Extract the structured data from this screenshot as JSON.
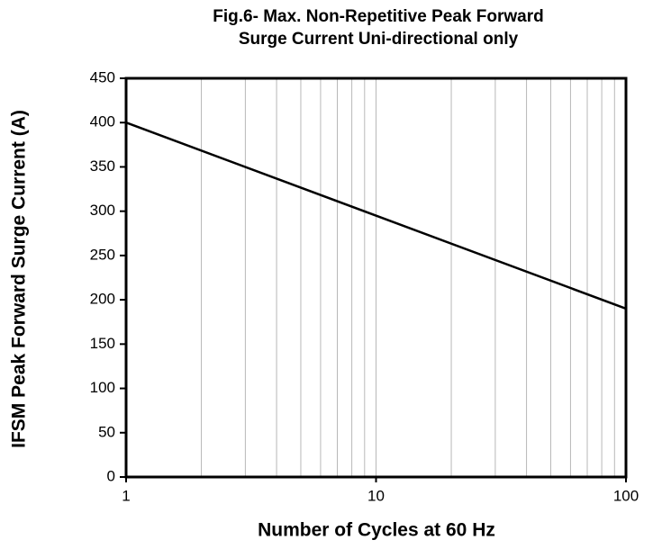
{
  "chart_data": {
    "type": "line",
    "title": [
      "Fig.6- Max. Non-Repetitive Peak Forward",
      "Surge Current Uni-directional only"
    ],
    "xlabel": "Number of Cycles at 60 Hz",
    "ylabel": "IFSM Peak Forward Surge Current (A)",
    "x": [
      1,
      100
    ],
    "series": [
      {
        "name": "IFSM",
        "color": "#000000",
        "values": [
          400,
          190
        ]
      }
    ],
    "xscale": "log",
    "xlim": [
      1,
      100
    ],
    "xticks": [
      1,
      10,
      100
    ],
    "xgrid": [
      2,
      3,
      4,
      5,
      6,
      7,
      8,
      9,
      10,
      20,
      30,
      40,
      50,
      60,
      70,
      80,
      90
    ],
    "ylim": [
      0,
      450
    ],
    "yticks": [
      0,
      50,
      100,
      150,
      200,
      250,
      300,
      350,
      400,
      450
    ],
    "grid": true
  }
}
